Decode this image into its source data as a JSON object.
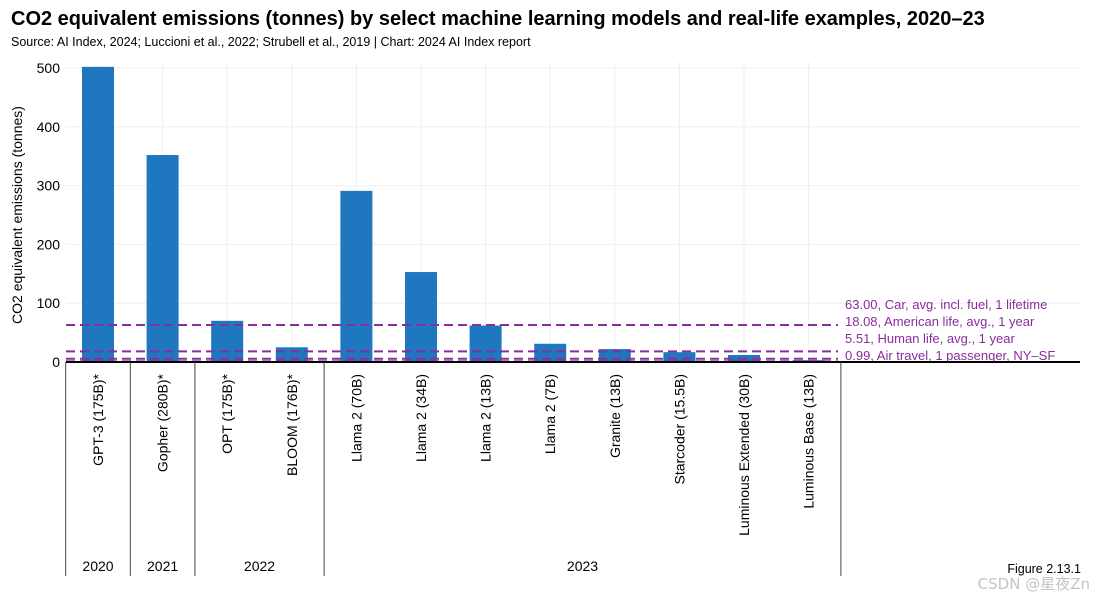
{
  "title": "CO2 equivalent emissions (tonnes) by select machine learning models and real-life examples, 2020–23",
  "subtitle": "Source: AI Index, 2024; Luccioni et al., 2022; Strubell et al., 2019 | Chart: 2024 AI Index report",
  "figure_label": "Figure 2.13.1",
  "watermark": "CSDN @星夜Zn",
  "colors": {
    "bar": "#1f77c0",
    "reference": "#8b2d9f",
    "grid": "#efefef",
    "axis": "#000000"
  },
  "chart_data": {
    "type": "bar",
    "title": "CO2 equivalent emissions (tonnes) by select machine learning models and real-life examples, 2020–23",
    "xlabel": "",
    "ylabel": "CO2 equivalent emissions (tonnes)",
    "ylim": [
      0,
      520
    ],
    "yticks": [
      0,
      100,
      200,
      300,
      400,
      500
    ],
    "grid": true,
    "categories": [
      "GPT-3 (175B)*",
      "Gopher (280B)*",
      "OPT (175B)*",
      "BLOOM (176B)*",
      "Llama 2 (70B)",
      "Llama 2 (34B)",
      "Llama 2 (13B)",
      "Llama 2 (7B)",
      "Granite (13B)",
      "Starcoder (15.5B)",
      "Luminous Extended (30B)",
      "Luminous Base (13B)"
    ],
    "values": [
      502,
      352,
      70,
      25,
      291,
      153,
      62,
      31,
      22,
      16.68,
      11.95,
      3.17
    ],
    "groups": [
      {
        "label": "2020",
        "count": 1
      },
      {
        "label": "2021",
        "count": 1
      },
      {
        "label": "2022",
        "count": 2
      },
      {
        "label": "2023",
        "count": 8
      }
    ],
    "reference_lines": [
      {
        "value": 63.0,
        "label": "63.00, Car, avg. incl. fuel, 1 lifetime"
      },
      {
        "value": 18.08,
        "label": "18.08, American life, avg., 1 year"
      },
      {
        "value": 5.51,
        "label": "5.51, Human life, avg., 1 year"
      },
      {
        "value": 0.99,
        "label": "0.99, Air travel, 1 passenger, NY–SF"
      }
    ]
  }
}
